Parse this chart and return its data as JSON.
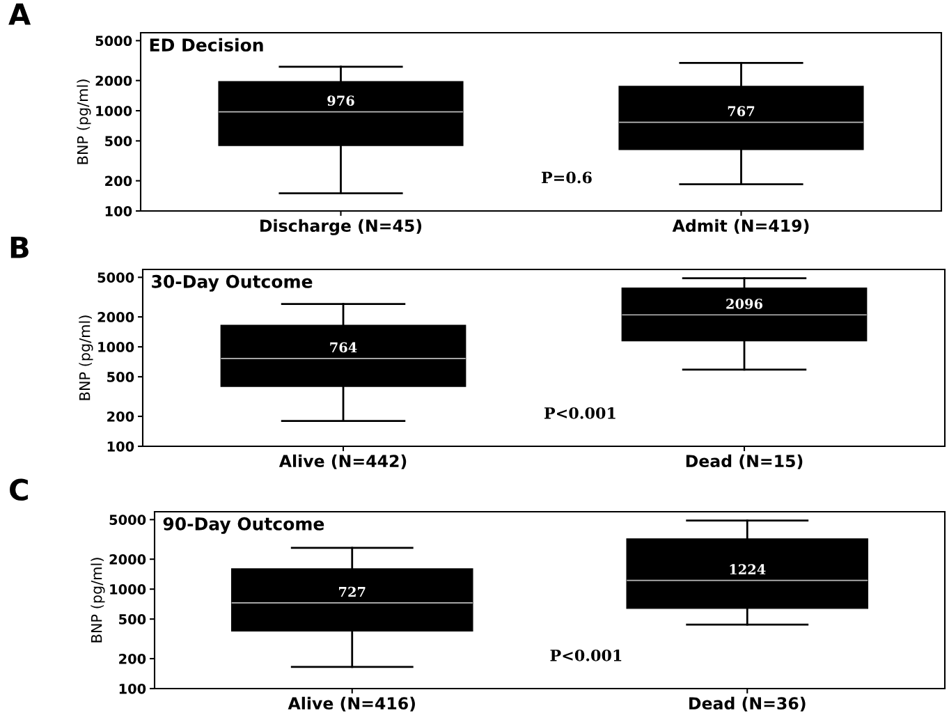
{
  "chart_data": [
    {
      "type": "box",
      "title": "ED Decision",
      "ylabel": "BNP (pg/ml)",
      "categories": [
        "Discharge (N=45)",
        "Admit (N=419)"
      ],
      "color": "#000000",
      "log": true,
      "ylim": [
        100,
        6000
      ],
      "yticks": [
        100,
        200,
        500,
        1000,
        2000,
        5000
      ],
      "grid": false,
      "value_labels": [
        "976",
        "767"
      ],
      "annotations": [
        "A",
        "P=0.6"
      ],
      "boxes": [
        {
          "low": 150,
          "q1": 450,
          "median": 976,
          "q3": 1950,
          "high": 2750
        },
        {
          "low": 185,
          "q1": 410,
          "median": 767,
          "q3": 1750,
          "high": 3000
        }
      ]
    },
    {
      "type": "box",
      "title": "30-Day Outcome",
      "ylabel": "BNP (pg/ml)",
      "categories": [
        "Alive (N=442)",
        "Dead (N=15)"
      ],
      "color": "#000000",
      "log": true,
      "ylim": [
        100,
        6000
      ],
      "yticks": [
        100,
        200,
        500,
        1000,
        2000,
        5000
      ],
      "grid": false,
      "value_labels": [
        "764",
        "2096"
      ],
      "annotations": [
        "B",
        "P<0.001"
      ],
      "boxes": [
        {
          "low": 180,
          "q1": 400,
          "median": 764,
          "q3": 1650,
          "high": 2700
        },
        {
          "low": 590,
          "q1": 1150,
          "median": 2096,
          "q3": 3900,
          "high": 4900
        }
      ]
    },
    {
      "type": "box",
      "title": "90-Day Outcome",
      "ylabel": "BNP (pg/ml)",
      "categories": [
        "Alive (N=416)",
        "Dead (N=36)"
      ],
      "color": "#000000",
      "log": true,
      "ylim": [
        100,
        6000
      ],
      "yticks": [
        100,
        200,
        500,
        1000,
        2000,
        5000
      ],
      "grid": false,
      "value_labels": [
        "727",
        "1224"
      ],
      "annotations": [
        "C",
        "P<0.001"
      ],
      "boxes": [
        {
          "low": 165,
          "q1": 380,
          "median": 727,
          "q3": 1600,
          "high": 2600
        },
        {
          "low": 440,
          "q1": 640,
          "median": 1224,
          "q3": 3200,
          "high": 4900
        }
      ]
    }
  ]
}
